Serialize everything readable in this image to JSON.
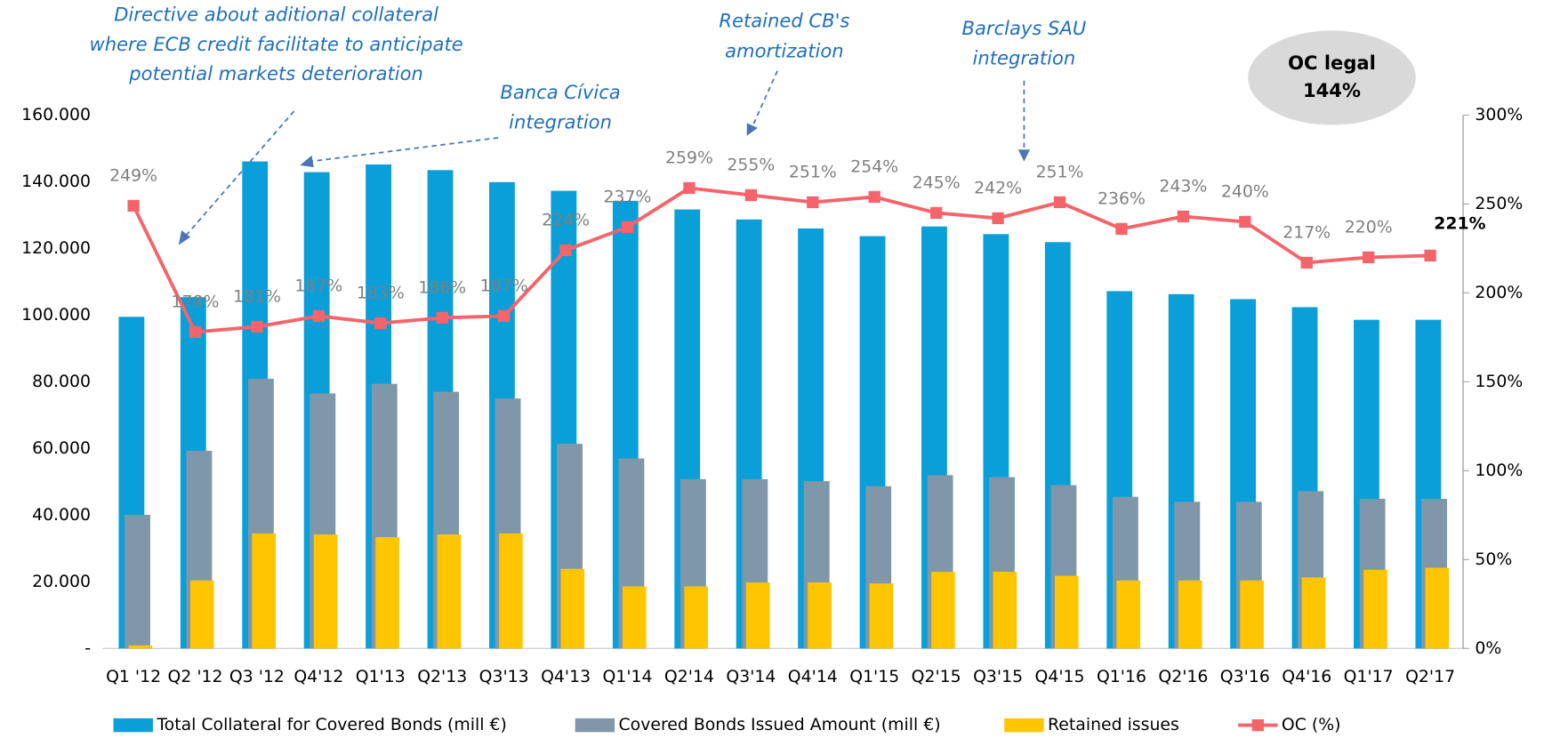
{
  "chart_data": {
    "type": "bar",
    "categories": [
      "Q1 '12",
      "Q2 '12",
      "Q3 '12",
      "Q4'12",
      "Q1'13",
      "Q2'13",
      "Q3'13",
      "Q4'13",
      "Q1'14",
      "Q2'14",
      "Q3'14",
      "Q4'14",
      "Q1'15",
      "Q2'15",
      "Q3'15",
      "Q4'15",
      "Q1'16",
      "Q2'16",
      "Q3'16",
      "Q4'16",
      "Q1'17",
      "Q2'17"
    ],
    "series": [
      {
        "name": "Total Collateral for Covered Bonds (mill €)",
        "color": "#0a9fd8",
        "values": [
          99500,
          105400,
          146100,
          142900,
          145200,
          143500,
          139900,
          137300,
          134300,
          131700,
          128700,
          126000,
          123700,
          126600,
          124300,
          121900,
          107200,
          106300,
          104800,
          102400,
          98600,
          98600
        ]
      },
      {
        "name": "Covered Bonds Issued Amount (mill €)",
        "color": "#8097aa",
        "values": [
          40100,
          59300,
          80900,
          76500,
          79400,
          77000,
          75000,
          61400,
          57000,
          50800,
          50800,
          50200,
          48700,
          52000,
          51400,
          49000,
          45500,
          44000,
          44000,
          47200,
          44900,
          44900
        ]
      },
      {
        "name": "Retained issues",
        "color": "#ffc600",
        "values": [
          900,
          20400,
          34500,
          34200,
          33400,
          34200,
          34500,
          23900,
          18600,
          18600,
          19800,
          19800,
          19500,
          23000,
          23000,
          21800,
          20400,
          20400,
          20400,
          21300,
          23600,
          24200
        ]
      },
      {
        "name": "OC (%)",
        "color": "#f4646a",
        "type": "line",
        "axis": "y2",
        "values": [
          249,
          178,
          181,
          187,
          183,
          186,
          187,
          224,
          237,
          259,
          255,
          251,
          254,
          245,
          242,
          251,
          236,
          243,
          240,
          217,
          220,
          221
        ],
        "value_labels": [
          "249%",
          "178%",
          "181%",
          "187%",
          "183%",
          "186%",
          "187%",
          "224%",
          "237%",
          "259%",
          "255%",
          "251%",
          "254%",
          "245%",
          "242%",
          "251%",
          "236%",
          "243%",
          "240%",
          "217%",
          "220%",
          "221%"
        ]
      }
    ],
    "ylim": [
      0,
      160000
    ],
    "yticks": [
      {
        "value": 0,
        "label": "-"
      },
      {
        "value": 20000,
        "label": "20.000"
      },
      {
        "value": 40000,
        "label": "40.000"
      },
      {
        "value": 60000,
        "label": "60.000"
      },
      {
        "value": 80000,
        "label": "80.000"
      },
      {
        "value": 100000,
        "label": "100.000"
      },
      {
        "value": 120000,
        "label": "120.000"
      },
      {
        "value": 140000,
        "label": "140.000"
      },
      {
        "value": 160000,
        "label": "160.000"
      }
    ],
    "y2lim": [
      0,
      300
    ],
    "y2ticks": [
      {
        "value": 0,
        "label": "0%"
      },
      {
        "value": 50,
        "label": "50%"
      },
      {
        "value": 100,
        "label": "100%"
      },
      {
        "value": 150,
        "label": "150%"
      },
      {
        "value": 200,
        "label": "200%"
      },
      {
        "value": 250,
        "label": "250%"
      },
      {
        "value": 300,
        "label": "300%"
      }
    ],
    "annotations": [
      {
        "lines": [
          "Directive about aditional collateral",
          "where ECB credit facilitate to anticipate",
          "potential markets deterioration"
        ]
      },
      {
        "lines": [
          "Banca Cívica",
          "integration"
        ]
      },
      {
        "lines": [
          "Retained CB's",
          "amortization"
        ]
      },
      {
        "lines": [
          "Barclays SAU",
          "integration"
        ]
      },
      {
        "lines": [
          "OC legal",
          "144%"
        ]
      }
    ],
    "legend": "bottom"
  }
}
